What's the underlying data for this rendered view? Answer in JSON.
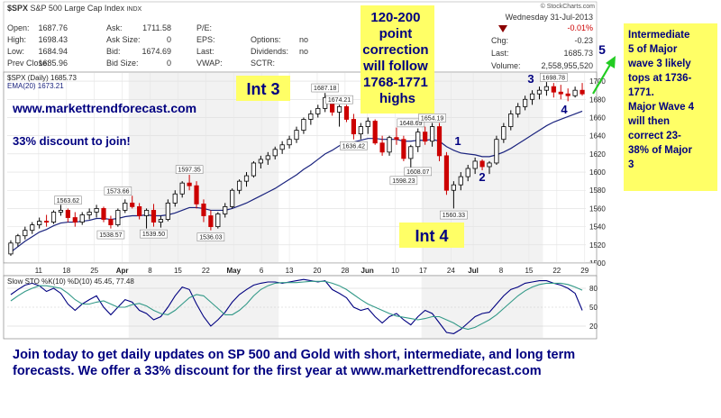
{
  "header": {
    "symbol": "$SPX",
    "name": "S&P 500 Large Cap Index",
    "exchange": "INDX",
    "open_label": "Open:",
    "open": "1687.76",
    "high_label": "High:",
    "high": "1698.43",
    "low_label": "Low:",
    "low": "1684.94",
    "prevclose_label": "Prev Close:",
    "prevclose": "1685.96",
    "ask_label": "Ask:",
    "ask": "1711.58",
    "asksize_label": "Ask Size:",
    "asksize": "0",
    "bid_label": "Bid:",
    "bid": "1674.69",
    "bidsize_label": "Bid Size:",
    "bidsize": "0",
    "pe_label": "P/E:",
    "eps_label": "EPS:",
    "last_label": "Last:",
    "vwap_label": "VWAP:",
    "options_label": "Options:",
    "options": "no",
    "dividends_label": "Dividends:",
    "dividends": "no",
    "sctr_label": "SCTR:",
    "date": "Wednesday  31-Jul-2013",
    "pct_change": "-0.01%",
    "chg_label": "Chg:",
    "chg": "-0.23",
    "last2_label": "Last:",
    "last2": "1685.73",
    "volume_label": "Volume:",
    "volume": "2,558,955,520",
    "watermark": "© StockCharts.com"
  },
  "legend": {
    "price": "$SPX (Daily) 1685.73",
    "ema": "EMA(20) 1673.21",
    "sto": "Slow STO %K(10) %D(10) 45.45, 77.48"
  },
  "annotations": {
    "int3": "Int 3",
    "int4": "Int 4",
    "website": "www.markettrendforecast.com",
    "discount": "33% discount to join!",
    "correction": [
      "120-200",
      "point",
      "correction",
      "will follow",
      "1768-1771",
      "highs"
    ],
    "wave1": "1",
    "wave2": "2",
    "wave3": "3",
    "wave4": "4",
    "wave5": "5",
    "right_box": [
      "Intermediate",
      "5 of Major",
      "wave 3 likely",
      "tops at 1736-",
      "1771.",
      "",
      "Major Wave 4",
      "will then",
      "correct 23-",
      "38% of Major",
      "3"
    ],
    "footer_lines": [
      "Join today to get daily updates on SP 500 and Gold with short, intermediate, and long term",
      "forecasts.  We offer a 33% discount for the first year at www.markettrendforecast.com"
    ]
  },
  "colors": {
    "up": "#000000",
    "down": "#cc0000",
    "ema": "#1a237e",
    "k_line": "#000080",
    "d_line": "#339988",
    "annotation": "#000080",
    "yellow_box": "#ffff66",
    "arrow": "#22cc22"
  },
  "chart_data": [
    {
      "type": "candlestick",
      "title": "$SPX (Daily) 1685.73",
      "ylim": [
        1500,
        1710
      ],
      "y_ticks": [
        1500,
        1520,
        1540,
        1560,
        1580,
        1600,
        1620,
        1640,
        1660,
        1680,
        1700
      ],
      "x_tick_labels": [
        "11",
        "18",
        "25",
        "Apr",
        "8",
        "15",
        "22",
        "May",
        "6",
        "13",
        "20",
        "28",
        "Jun",
        "10",
        "17",
        "24",
        "Jul",
        "8",
        "15",
        "22",
        "29"
      ],
      "candles": [
        [
          1510,
          1525,
          1508,
          1522
        ],
        [
          1522,
          1532,
          1518,
          1530
        ],
        [
          1530,
          1540,
          1526,
          1536
        ],
        [
          1536,
          1545,
          1532,
          1542
        ],
        [
          1542,
          1550,
          1538,
          1546
        ],
        [
          1546,
          1553,
          1540,
          1545
        ],
        [
          1545,
          1558,
          1543,
          1556
        ],
        [
          1556,
          1564,
          1552,
          1558
        ],
        [
          1558,
          1560,
          1545,
          1550
        ],
        [
          1550,
          1556,
          1540,
          1545
        ],
        [
          1545,
          1556,
          1542,
          1553
        ],
        [
          1553,
          1560,
          1548,
          1556
        ],
        [
          1556,
          1564,
          1550,
          1560
        ],
        [
          1560,
          1562,
          1545,
          1548
        ],
        [
          1548,
          1552,
          1538,
          1542
        ],
        [
          1542,
          1560,
          1540,
          1558
        ],
        [
          1558,
          1570,
          1555,
          1566
        ],
        [
          1566,
          1574,
          1560,
          1562
        ],
        [
          1562,
          1566,
          1548,
          1552
        ],
        [
          1552,
          1560,
          1538,
          1558
        ],
        [
          1558,
          1565,
          1540,
          1545
        ],
        [
          1545,
          1552,
          1539,
          1548
        ],
        [
          1548,
          1570,
          1546,
          1566
        ],
        [
          1566,
          1580,
          1562,
          1576
        ],
        [
          1576,
          1590,
          1572,
          1588
        ],
        [
          1588,
          1597,
          1580,
          1585
        ],
        [
          1585,
          1590,
          1560,
          1565
        ],
        [
          1565,
          1570,
          1545,
          1552
        ],
        [
          1552,
          1558,
          1536,
          1540
        ],
        [
          1540,
          1556,
          1538,
          1554
        ],
        [
          1554,
          1566,
          1550,
          1562
        ],
        [
          1562,
          1582,
          1560,
          1580
        ],
        [
          1580,
          1592,
          1576,
          1590
        ],
        [
          1590,
          1600,
          1584,
          1596
        ],
        [
          1596,
          1612,
          1594,
          1610
        ],
        [
          1610,
          1618,
          1604,
          1614
        ],
        [
          1614,
          1622,
          1608,
          1618
        ],
        [
          1618,
          1628,
          1614,
          1625
        ],
        [
          1625,
          1634,
          1620,
          1630
        ],
        [
          1630,
          1640,
          1626,
          1636
        ],
        [
          1636,
          1650,
          1632,
          1646
        ],
        [
          1646,
          1660,
          1642,
          1658
        ],
        [
          1658,
          1668,
          1652,
          1664
        ],
        [
          1664,
          1674,
          1660,
          1670
        ],
        [
          1670,
          1687,
          1666,
          1682
        ],
        [
          1682,
          1684,
          1662,
          1666
        ],
        [
          1666,
          1674,
          1650,
          1672
        ],
        [
          1672,
          1674,
          1655,
          1658
        ],
        [
          1658,
          1664,
          1636,
          1642
        ],
        [
          1642,
          1654,
          1636,
          1650
        ],
        [
          1650,
          1660,
          1642,
          1656
        ],
        [
          1656,
          1658,
          1630,
          1632
        ],
        [
          1632,
          1640,
          1618,
          1622
        ],
        [
          1622,
          1640,
          1618,
          1638
        ],
        [
          1638,
          1649,
          1630,
          1636
        ],
        [
          1636,
          1640,
          1612,
          1615
        ],
        [
          1615,
          1630,
          1598,
          1628
        ],
        [
          1628,
          1648,
          1622,
          1644
        ],
        [
          1644,
          1650,
          1630,
          1634
        ],
        [
          1634,
          1654,
          1628,
          1650
        ],
        [
          1650,
          1654,
          1612,
          1618
        ],
        [
          1618,
          1622,
          1575,
          1580
        ],
        [
          1580,
          1590,
          1560,
          1586
        ],
        [
          1586,
          1600,
          1580,
          1595
        ],
        [
          1595,
          1608,
          1590,
          1604
        ],
        [
          1604,
          1616,
          1598,
          1612
        ],
        [
          1612,
          1614,
          1602,
          1606
        ],
        [
          1606,
          1612,
          1598,
          1610
        ],
        [
          1610,
          1640,
          1608,
          1636
        ],
        [
          1636,
          1654,
          1632,
          1650
        ],
        [
          1650,
          1668,
          1646,
          1664
        ],
        [
          1664,
          1676,
          1660,
          1672
        ],
        [
          1672,
          1684,
          1668,
          1680
        ],
        [
          1680,
          1690,
          1674,
          1686
        ],
        [
          1686,
          1694,
          1680,
          1690
        ],
        [
          1690,
          1699,
          1684,
          1694
        ],
        [
          1694,
          1698,
          1682,
          1688
        ],
        [
          1688,
          1696,
          1680,
          1686
        ],
        [
          1686,
          1692,
          1678,
          1684
        ],
        [
          1684,
          1694,
          1682,
          1690
        ],
        [
          1690,
          1698,
          1684,
          1686
        ]
      ],
      "ema": [
        1512,
        1518,
        1524,
        1529,
        1534,
        1537,
        1541,
        1544,
        1545,
        1545,
        1546,
        1547,
        1549,
        1549,
        1548,
        1549,
        1551,
        1552,
        1552,
        1553,
        1552,
        1552,
        1553,
        1555,
        1558,
        1561,
        1561,
        1560,
        1558,
        1558,
        1558,
        1560,
        1563,
        1566,
        1570,
        1574,
        1578,
        1582,
        1587,
        1592,
        1597,
        1603,
        1608,
        1614,
        1620,
        1624,
        1629,
        1632,
        1633,
        1635,
        1637,
        1637,
        1636,
        1636,
        1636,
        1634,
        1634,
        1635,
        1635,
        1636,
        1634,
        1628,
        1624,
        1621,
        1620,
        1619,
        1617,
        1617,
        1619,
        1622,
        1626,
        1631,
        1636,
        1641,
        1646,
        1651,
        1655,
        1658,
        1661,
        1664,
        1667
      ],
      "data_labels": [
        {
          "label": "1563.62",
          "value": 1563.62
        },
        {
          "label": "1538.57",
          "value": 1538.57
        },
        {
          "label": "1573.66",
          "value": 1573.66
        },
        {
          "label": "1539.50",
          "value": 1539.5
        },
        {
          "label": "1597.35",
          "value": 1597.35
        },
        {
          "label": "1536.03",
          "value": 1536.03
        },
        {
          "label": "1687.18",
          "value": 1687.18
        },
        {
          "label": "1674.21",
          "value": 1674.21
        },
        {
          "label": "1636.42",
          "value": 1636.42
        },
        {
          "label": "1648.69",
          "value": 1648.69
        },
        {
          "label": "1654.19",
          "value": 1654.19
        },
        {
          "label": "1598.23",
          "value": 1598.23
        },
        {
          "label": "1608.07",
          "value": 1608.07
        },
        {
          "label": "1560.33",
          "value": 1560.33
        },
        {
          "label": "1698.78",
          "value": 1698.78
        }
      ]
    },
    {
      "type": "line",
      "title": "Slow STO %K(10) %D(10) 45.45, 77.48",
      "ylim": [
        0,
        100
      ],
      "y_ticks": [
        20,
        50,
        80
      ],
      "series": [
        {
          "name": "%K",
          "values": [
            70,
            78,
            85,
            88,
            84,
            75,
            80,
            72,
            55,
            45,
            55,
            62,
            68,
            50,
            38,
            50,
            62,
            58,
            45,
            40,
            30,
            35,
            50,
            68,
            82,
            78,
            55,
            35,
            20,
            30,
            42,
            58,
            70,
            78,
            85,
            88,
            90,
            90,
            88,
            90,
            92,
            94,
            92,
            90,
            92,
            78,
            72,
            65,
            50,
            45,
            48,
            35,
            25,
            35,
            40,
            30,
            22,
            35,
            45,
            40,
            25,
            10,
            8,
            15,
            25,
            35,
            40,
            42,
            55,
            68,
            78,
            82,
            88,
            90,
            92,
            92,
            88,
            85,
            80,
            72,
            45
          ]
        },
        {
          "name": "%D",
          "values": [
            60,
            68,
            75,
            80,
            84,
            84,
            82,
            80,
            72,
            62,
            55,
            55,
            58,
            60,
            55,
            50,
            50,
            54,
            56,
            52,
            45,
            40,
            38,
            45,
            55,
            65,
            70,
            68,
            58,
            48,
            38,
            38,
            45,
            55,
            68,
            78,
            84,
            88,
            89,
            89,
            89,
            90,
            91,
            91,
            91,
            88,
            84,
            78,
            70,
            62,
            55,
            50,
            45,
            40,
            36,
            34,
            32,
            30,
            32,
            35,
            35,
            30,
            25,
            18,
            15,
            18,
            24,
            30,
            38,
            48,
            58,
            68,
            76,
            82,
            86,
            88,
            88,
            88,
            86,
            82,
            77
          ]
        }
      ]
    }
  ]
}
